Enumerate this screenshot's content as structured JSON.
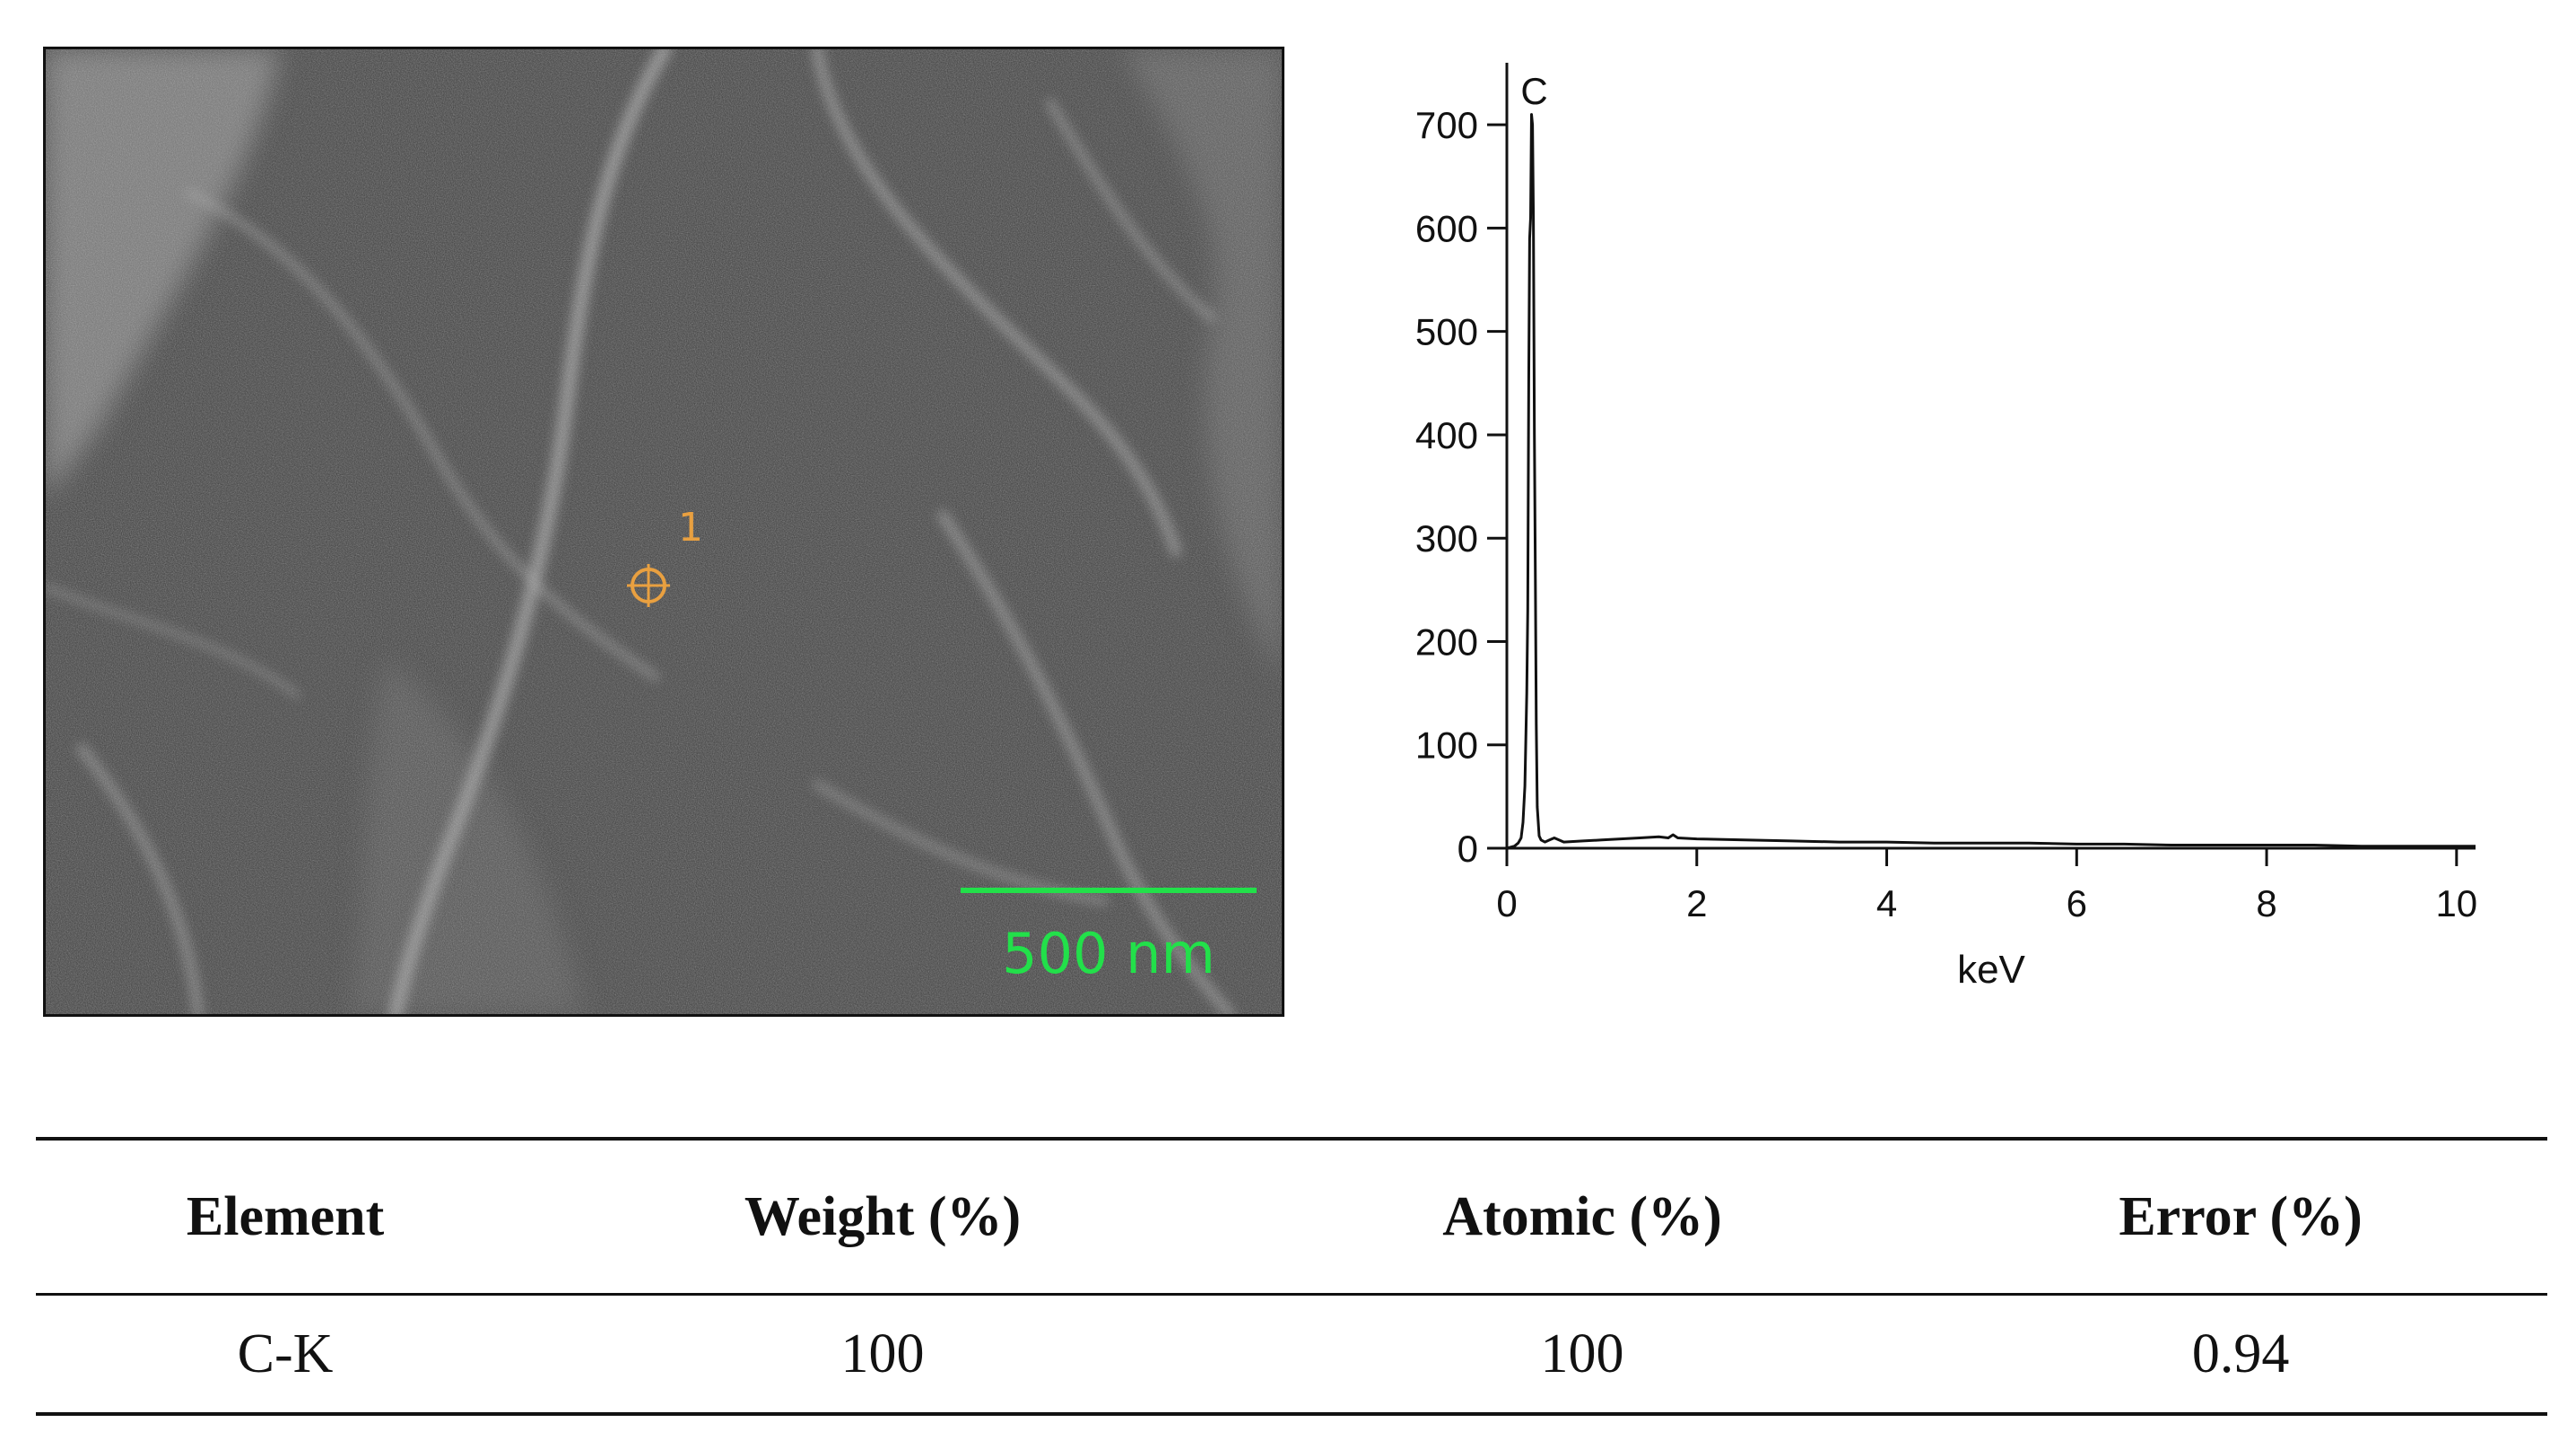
{
  "sem_image": {
    "scale_bar_label": "500 nm",
    "marker_label": "1",
    "colors": {
      "scale": "#22e04a",
      "marker": "#e9a040"
    }
  },
  "chart_data": {
    "type": "line",
    "xlabel": "keV",
    "ylabel": "",
    "xlim": [
      0,
      10.2
    ],
    "ylim": [
      0,
      760
    ],
    "xticks": [
      0,
      2,
      4,
      6,
      8,
      10
    ],
    "yticks": [
      0,
      100,
      200,
      300,
      400,
      500,
      600,
      700
    ],
    "annotations": [
      {
        "text": "C",
        "x": 0.27,
        "y": 720
      }
    ],
    "series": [
      {
        "x": [
          0,
          0.08,
          0.12,
          0.15,
          0.17,
          0.19,
          0.21,
          0.22,
          0.23,
          0.24,
          0.25,
          0.26,
          0.27,
          0.28,
          0.29,
          0.3,
          0.31,
          0.32,
          0.34,
          0.36,
          0.4,
          0.45,
          0.5,
          0.6,
          0.8,
          1.0,
          1.2,
          1.4,
          1.6,
          1.7,
          1.75,
          1.8,
          2.0,
          2.5,
          3.0,
          3.5,
          4.0,
          4.5,
          5.0,
          5.5,
          6.0,
          6.5,
          7.0,
          7.5,
          8.0,
          8.5,
          9.0,
          9.5,
          10.0,
          10.2
        ],
        "y": [
          0,
          2,
          5,
          10,
          25,
          60,
          150,
          230,
          450,
          590,
          610,
          710,
          700,
          610,
          400,
          260,
          120,
          40,
          12,
          8,
          6,
          8,
          10,
          6,
          7,
          8,
          9,
          10,
          11,
          10,
          13,
          10,
          9,
          8,
          7,
          6,
          6,
          5,
          5,
          5,
          4,
          4,
          3,
          3,
          3,
          3,
          2,
          2,
          2,
          2
        ]
      }
    ]
  },
  "table": {
    "headers": [
      "Element",
      "Weight (%)",
      "Atomic (%)",
      "Error (%)"
    ],
    "rows": [
      [
        "C-K",
        "100",
        "100",
        "0.94"
      ]
    ]
  }
}
